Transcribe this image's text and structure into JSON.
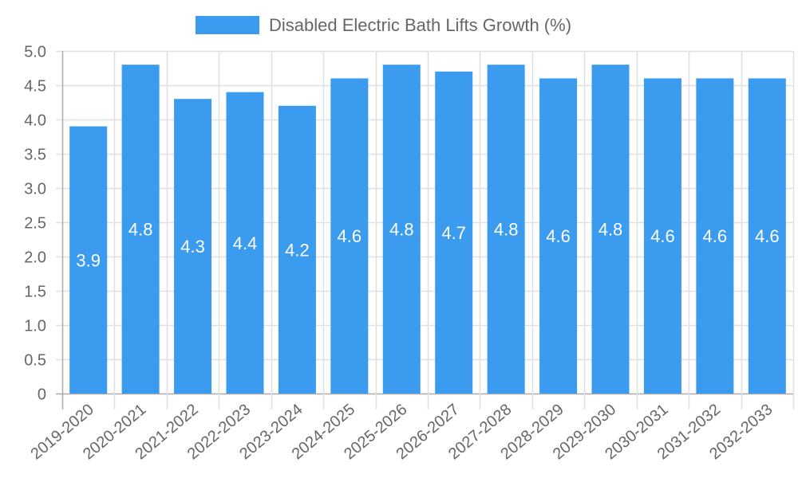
{
  "chart_data": {
    "type": "bar",
    "title": "",
    "xlabel": "",
    "ylabel": "",
    "categories": [
      "2019-2020",
      "2020-2021",
      "2021-2022",
      "2022-2023",
      "2023-2024",
      "2024-2025",
      "2025-2026",
      "2026-2027",
      "2027-2028",
      "2028-2029",
      "2029-2030",
      "2030-2031",
      "2031-2032",
      "2032-2033"
    ],
    "series": [
      {
        "name": "Disabled Electric Bath Lifts Growth (%)",
        "color": "#3a9bef",
        "values": [
          3.9,
          4.8,
          4.3,
          4.4,
          4.2,
          4.6,
          4.8,
          4.7,
          4.8,
          4.6,
          4.8,
          4.6,
          4.6,
          4.6
        ]
      }
    ],
    "data_labels": [
      "3.9",
      "4.8",
      "4.3",
      "4.4",
      "4.2",
      "4.6",
      "4.8",
      "4.7",
      "4.8",
      "4.6",
      "4.8",
      "4.6",
      "4.6",
      "4.6"
    ],
    "ylim": [
      0,
      5.0
    ],
    "yticks": [
      0,
      0.5,
      1.0,
      1.5,
      2.0,
      2.5,
      3.0,
      3.5,
      4.0,
      4.5,
      5.0
    ],
    "ytick_labels": [
      "0",
      "0.5",
      "1.0",
      "1.5",
      "2.0",
      "2.5",
      "3.0",
      "3.5",
      "4.0",
      "4.5",
      "5.0"
    ],
    "grid": true,
    "legend_position": "top-center",
    "colors": {
      "bar": "#3a9bef",
      "grid": "#e0e0e0",
      "axis": "#aaaaaa",
      "text": "#666666",
      "data_label": "#ffffff"
    }
  }
}
